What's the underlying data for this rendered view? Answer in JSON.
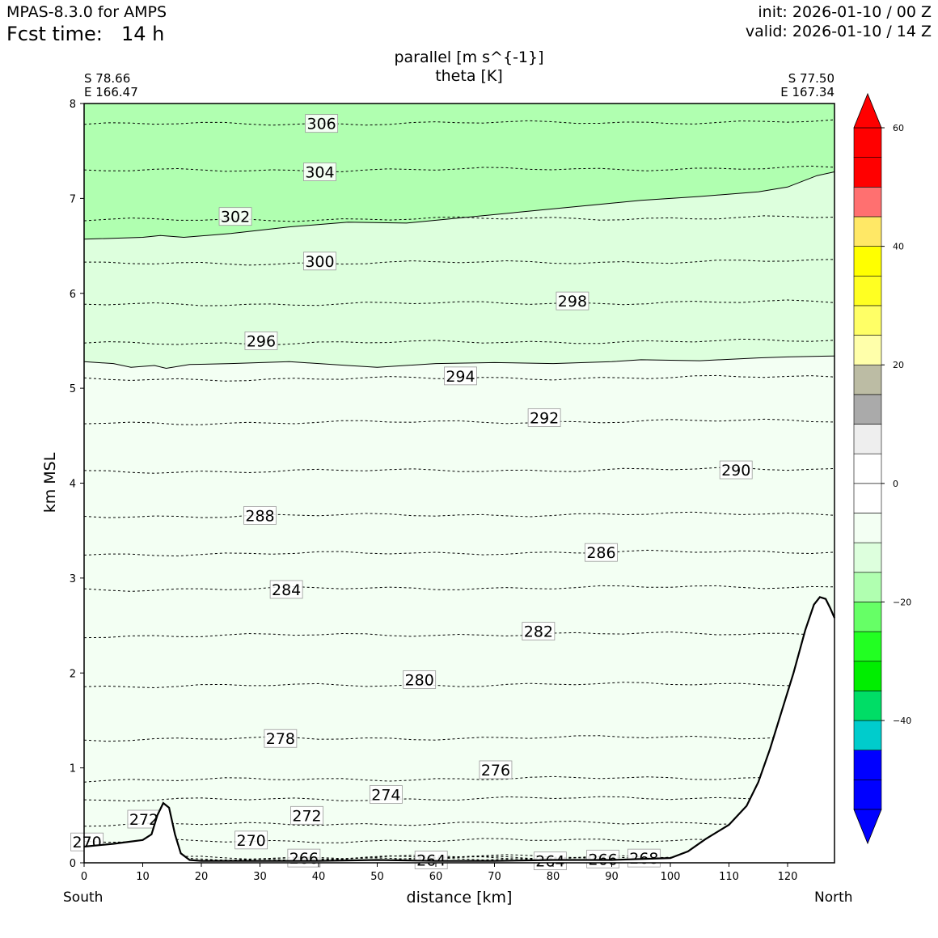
{
  "header": {
    "model": "MPAS-8.3.0 for AMPS",
    "fcst_label": "Fcst time:",
    "fcst_value": "14 h",
    "init": "init: 2026-01-10 / 00 Z",
    "valid": "valid: 2026-01-10 / 14 Z"
  },
  "section": {
    "start_lat": "S 78.66",
    "start_lon": "E 166.47",
    "end_lat": "S 77.50",
    "end_lon": "E 167.34",
    "south_label": "South",
    "north_label": "North"
  },
  "chart_data": {
    "type": "cross-section contour",
    "title": "parallel [m s^{-1}]",
    "subtitle": "theta [K]",
    "xlabel": "distance [km]",
    "ylabel": "km MSL",
    "xlim": [
      0,
      128
    ],
    "ylim": [
      0,
      8
    ],
    "xticks": [
      0,
      10,
      20,
      30,
      40,
      50,
      60,
      70,
      80,
      90,
      100,
      110,
      120
    ],
    "yticks": [
      0,
      1,
      2,
      3,
      4,
      5,
      6,
      7,
      8
    ],
    "grid": false,
    "colorbar": {
      "ticks": [
        60,
        40,
        20,
        0,
        -20,
        -40
      ],
      "levels": [
        -55,
        -50,
        -45,
        -40,
        -35,
        -30,
        -25,
        -20,
        -15,
        -10,
        -5,
        0,
        5,
        10,
        15,
        20,
        25,
        30,
        35,
        40,
        45,
        50,
        55,
        60
      ],
      "colors": [
        "#0000ff",
        "#0000ff",
        "#00cccc",
        "#00dd66",
        "#00ee00",
        "#22ff22",
        "#66ff66",
        "#b0ffb0",
        "#ddffdd",
        "#f3fff3",
        "#ffffff",
        "#ffffff",
        "#eeeeee",
        "#aaaaaa",
        "#bcbca4",
        "#ffffaa",
        "#ffff66",
        "#ffff22",
        "#ffff00",
        "#ffe866",
        "#ff7070",
        "#ff0000",
        "#ff0000"
      ],
      "under_color": "#0000ff",
      "over_color": "#ff0000"
    },
    "fill_regions": [
      {
        "name": "parallel -15 to -10",
        "color": "#b0ffb0",
        "boundary": [
          [
            0,
            6.57
          ],
          [
            10,
            6.59
          ],
          [
            13,
            6.61
          ],
          [
            17,
            6.59
          ],
          [
            25,
            6.63
          ],
          [
            35,
            6.7
          ],
          [
            45,
            6.75
          ],
          [
            55,
            6.74
          ],
          [
            65,
            6.8
          ],
          [
            75,
            6.86
          ],
          [
            85,
            6.92
          ],
          [
            95,
            6.98
          ],
          [
            105,
            7.02
          ],
          [
            115,
            7.07
          ],
          [
            120,
            7.12
          ],
          [
            125,
            7.24
          ],
          [
            128,
            7.28
          ]
        ]
      },
      {
        "name": "parallel -10 to -5",
        "color": "#ddffdd",
        "boundary": [
          [
            0,
            5.28
          ],
          [
            5,
            5.26
          ],
          [
            8,
            5.22
          ],
          [
            12,
            5.24
          ],
          [
            14,
            5.21
          ],
          [
            18,
            5.25
          ],
          [
            25,
            5.26
          ],
          [
            35,
            5.28
          ],
          [
            45,
            5.24
          ],
          [
            50,
            5.22
          ],
          [
            60,
            5.26
          ],
          [
            70,
            5.27
          ],
          [
            80,
            5.26
          ],
          [
            90,
            5.28
          ],
          [
            95,
            5.3
          ],
          [
            105,
            5.29
          ],
          [
            115,
            5.32
          ],
          [
            120,
            5.33
          ],
          [
            128,
            5.34
          ]
        ]
      }
    ],
    "theta_contours": [
      {
        "value": 306,
        "label_x": 40.5,
        "label_y": 7.79,
        "y": 7.78
      },
      {
        "value": 304,
        "label_x": 40.2,
        "label_y": 7.28,
        "y": 7.29
      },
      {
        "value": 302,
        "label_x": 25.8,
        "label_y": 6.81,
        "y": 6.77
      },
      {
        "value": 300,
        "label_x": 40.2,
        "label_y": 6.34,
        "y": 6.31
      },
      {
        "value": 298,
        "label_x": 83.3,
        "label_y": 5.92,
        "y": 5.88
      },
      {
        "value": 296,
        "label_x": 30.2,
        "label_y": 5.5,
        "y": 5.47
      },
      {
        "value": 294,
        "label_x": 64.2,
        "label_y": 5.13,
        "y": 5.09
      },
      {
        "value": 292,
        "label_x": 78.5,
        "label_y": 4.69,
        "y": 4.63
      },
      {
        "value": 290,
        "label_x": 111.2,
        "label_y": 4.14,
        "y": 4.12
      },
      {
        "value": 288,
        "label_x": 30,
        "label_y": 3.66,
        "y": 3.65
      },
      {
        "value": 286,
        "label_x": 88.2,
        "label_y": 3.27,
        "y": 3.25
      },
      {
        "value": 284,
        "label_x": 34.5,
        "label_y": 2.88,
        "y": 2.88
      },
      {
        "value": 282,
        "label_x": 77.5,
        "label_y": 2.44,
        "y": 2.39
      },
      {
        "value": 280,
        "label_x": 57.2,
        "label_y": 1.93,
        "y": 1.86
      },
      {
        "value": 278,
        "label_x": 33.5,
        "label_y": 1.31,
        "y": 1.3
      },
      {
        "value": 276,
        "label_x": 70.2,
        "label_y": 0.98,
        "y": 0.87
      },
      {
        "value": 274,
        "label_x": 51.5,
        "label_y": 0.72,
        "y": 0.66
      },
      {
        "value": 272,
        "label_x": 10.2,
        "label_y": 0.46,
        "y": 0.4
      },
      {
        "value": 272,
        "label_x": 38,
        "label_y": 0.5,
        "y": 0.4
      },
      {
        "value": 270,
        "label_x": 0.5,
        "label_y": 0.22,
        "y": 0.22
      },
      {
        "value": 270,
        "label_x": 28.5,
        "label_y": 0.24,
        "y": 0.22
      },
      {
        "value": 266,
        "label_x": 37.5,
        "label_y": 0.05,
        "y": 0.05
      },
      {
        "value": 264,
        "label_x": 59.2,
        "label_y": 0.03,
        "y": 0.03
      },
      {
        "value": 264,
        "label_x": 79.5,
        "label_y": 0.02,
        "y": 0.02
      },
      {
        "value": 266,
        "label_x": 88.5,
        "label_y": 0.04,
        "y": 0.04
      },
      {
        "value": 268,
        "label_x": 95.5,
        "label_y": 0.05,
        "y": 0.05
      }
    ],
    "terrain": [
      [
        0,
        0.17
      ],
      [
        5,
        0.2
      ],
      [
        10,
        0.24
      ],
      [
        11.5,
        0.3
      ],
      [
        12.5,
        0.5
      ],
      [
        13.5,
        0.63
      ],
      [
        14.5,
        0.58
      ],
      [
        15.5,
        0.3
      ],
      [
        16.5,
        0.1
      ],
      [
        18,
        0.03
      ],
      [
        20,
        0.02
      ],
      [
        30,
        0.02
      ],
      [
        40,
        0.02
      ],
      [
        50,
        0.03
      ],
      [
        60,
        0.02
      ],
      [
        70,
        0.02
      ],
      [
        80,
        0.03
      ],
      [
        90,
        0.03
      ],
      [
        100,
        0.05
      ],
      [
        103,
        0.12
      ],
      [
        106,
        0.25
      ],
      [
        110,
        0.4
      ],
      [
        113,
        0.6
      ],
      [
        115,
        0.85
      ],
      [
        117,
        1.2
      ],
      [
        119,
        1.6
      ],
      [
        121,
        2.0
      ],
      [
        123,
        2.45
      ],
      [
        124.5,
        2.72
      ],
      [
        125.5,
        2.8
      ],
      [
        126.5,
        2.78
      ],
      [
        127.3,
        2.68
      ],
      [
        128,
        2.58
      ]
    ]
  }
}
